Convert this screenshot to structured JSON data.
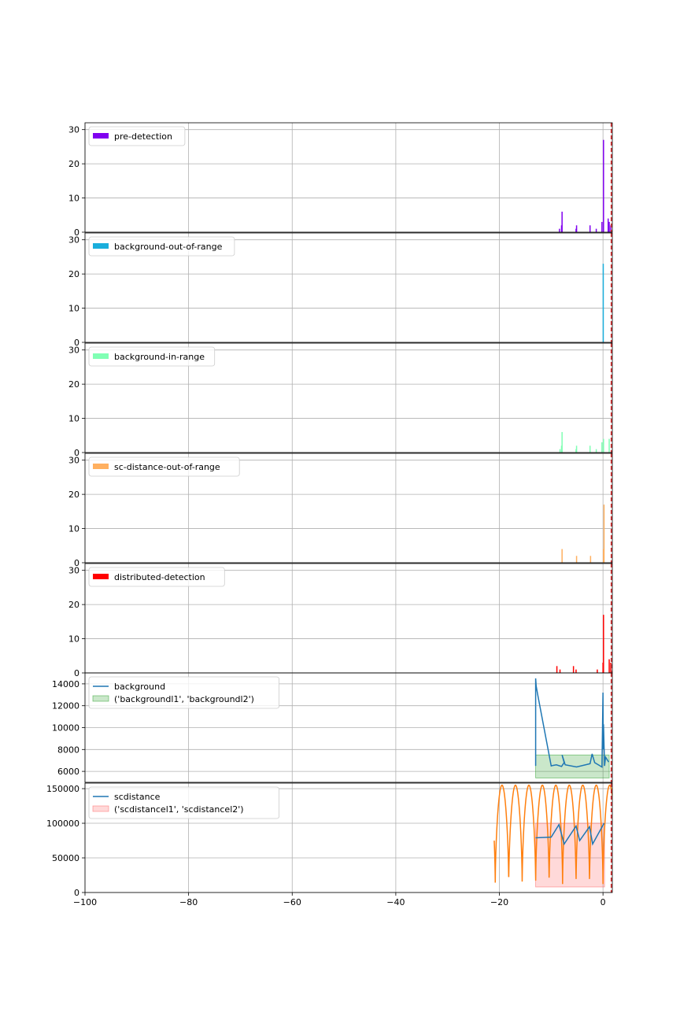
{
  "chart_data": {
    "type": "bar",
    "shared_x": {
      "xlim": [
        -100,
        1.8
      ],
      "ticks": [
        -100,
        -80,
        -60,
        -40,
        -20,
        0
      ]
    },
    "marker_line": {
      "x": 1.6,
      "color": "#d62728"
    },
    "panels": [
      {
        "type": "bar",
        "name": "pre-detection",
        "legend": [
          "pre-detection"
        ],
        "color": "#8000f0",
        "ylim": [
          0,
          32
        ],
        "yticks": [
          0,
          10,
          20,
          30
        ],
        "x": [
          -8.4,
          -8.0,
          -7.9,
          -5.2,
          -5.1,
          -2.5,
          -1.3,
          -0.2,
          0.1,
          1.0,
          1.2,
          1.5
        ],
        "values": [
          1,
          2,
          6,
          1,
          2,
          2,
          1,
          3,
          27,
          4,
          3,
          2
        ]
      },
      {
        "type": "bar",
        "name": "background-out-of-range",
        "legend": [
          "background-out-of-range"
        ],
        "color": "#1aaedc",
        "ylim": [
          0,
          32
        ],
        "yticks": [
          0,
          10,
          20,
          30
        ],
        "x": [
          0.05
        ],
        "values": [
          23
        ]
      },
      {
        "type": "bar",
        "name": "background-in-range",
        "legend": [
          "background-in-range"
        ],
        "color": "#80ffb4",
        "ylim": [
          0,
          32
        ],
        "yticks": [
          0,
          10,
          20,
          30
        ],
        "x": [
          -8.3,
          -8.0,
          -7.9,
          -5.2,
          -5.1,
          -2.5,
          -1.3,
          -0.2,
          0.1,
          1.2
        ],
        "values": [
          1,
          2,
          6,
          1,
          2,
          2,
          1,
          3,
          4,
          4
        ]
      },
      {
        "type": "bar",
        "name": "sc-distance-out-of-range",
        "legend": [
          "sc-distance-out-of-range"
        ],
        "color": "#ffb060",
        "ylim": [
          0,
          32
        ],
        "yticks": [
          0,
          10,
          20,
          30
        ],
        "x": [
          -7.9,
          -5.1,
          -2.4,
          0.1,
          0.2
        ],
        "values": [
          4,
          2,
          2,
          4,
          17
        ]
      },
      {
        "type": "bar",
        "name": "distributed-detection",
        "legend": [
          "distributed-detection"
        ],
        "color": "#ff0000",
        "ylim": [
          0,
          32
        ],
        "yticks": [
          0,
          10,
          20,
          30
        ],
        "x": [
          -8.9,
          -8.3,
          -5.7,
          -5.2,
          -1.1,
          0.0,
          0.1,
          1.2,
          1.5
        ],
        "values": [
          2,
          1,
          2,
          1,
          1,
          3,
          17,
          4,
          3
        ]
      },
      {
        "type": "line",
        "name": "background",
        "legend": [
          "background",
          "('backgroundl1', 'backgroundl2')"
        ],
        "color": "#1f77b4",
        "band_color": "#2ca02c",
        "ylim": [
          5000,
          15000
        ],
        "yticks": [
          6000,
          8000,
          10000,
          12000,
          14000
        ],
        "band": {
          "x": [
            -13,
            1.2
          ],
          "low": 5400,
          "high": 7500
        },
        "x": [
          -13,
          -13,
          -13,
          -12.9,
          -12.6,
          -11,
          -10,
          -9.6,
          -9,
          -8,
          -7.5,
          -7.9,
          -7.3,
          -5.1,
          -2.5,
          -2.1,
          -1.6,
          -0.9,
          -0.2,
          0.0,
          0.05,
          0.1,
          0.3,
          0.5,
          1.1
        ],
        "y": [
          6500,
          10300,
          14500,
          13800,
          13000,
          9000,
          6500,
          6550,
          6600,
          6450,
          6800,
          7500,
          6600,
          6400,
          6700,
          7600,
          6800,
          6600,
          6400,
          13200,
          8000,
          10300,
          6500,
          7300,
          6850
        ]
      },
      {
        "type": "line",
        "name": "scdistance",
        "legend": [
          "scdistance",
          "('scdistancel1', 'scdistancel2')"
        ],
        "color": "#1f77b4",
        "orbit_color": "#ff7f0e",
        "band_color": "#ff6666",
        "ylim": [
          0,
          158000
        ],
        "yticks": [
          0,
          50000,
          100000,
          150000
        ],
        "band": {
          "x": [
            -13,
            0.3
          ],
          "low": 8000,
          "high": 100000
        },
        "x": [
          -13,
          -10,
          -8.5,
          -7.5,
          -5.2,
          -4.5,
          -2.6,
          -2.0,
          0.2
        ],
        "y": [
          79000,
          80000,
          98000,
          70000,
          96000,
          75000,
          95000,
          70000,
          100000
        ],
        "orbit": {
          "x_start": -21,
          "x_end": 1.8,
          "period": 2.6,
          "phase_min": -20.8,
          "min": 8000,
          "max": 155000
        }
      }
    ]
  }
}
